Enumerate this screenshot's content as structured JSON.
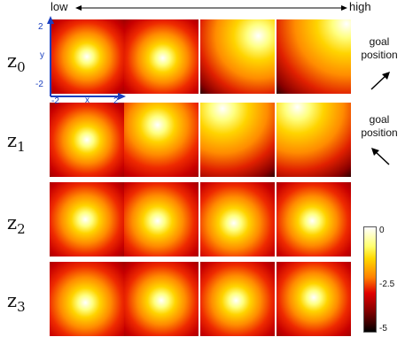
{
  "header": {
    "low_label": "low",
    "high_label": "high"
  },
  "rows": [
    {
      "symbol": "z",
      "sub": "0"
    },
    {
      "symbol": "z",
      "sub": "1"
    },
    {
      "symbol": "z",
      "sub": "2"
    },
    {
      "symbol": "z",
      "sub": "3"
    }
  ],
  "annotations": [
    {
      "line1": "goal",
      "line2": "position",
      "arrow": "up-right"
    },
    {
      "line1": "goal",
      "line2": "position",
      "arrow": "up-left"
    }
  ],
  "axes": {
    "y_label": "y",
    "x_label": "x",
    "y_max": "2",
    "y_min": "-2",
    "x_min": "-2",
    "x_max": "2"
  },
  "colorbar": {
    "ticks": [
      "0",
      "-2.5",
      "-5"
    ],
    "colormap": "hot"
  },
  "colors": {
    "axis": "#1a3fbf",
    "arrow": "#000000"
  }
}
